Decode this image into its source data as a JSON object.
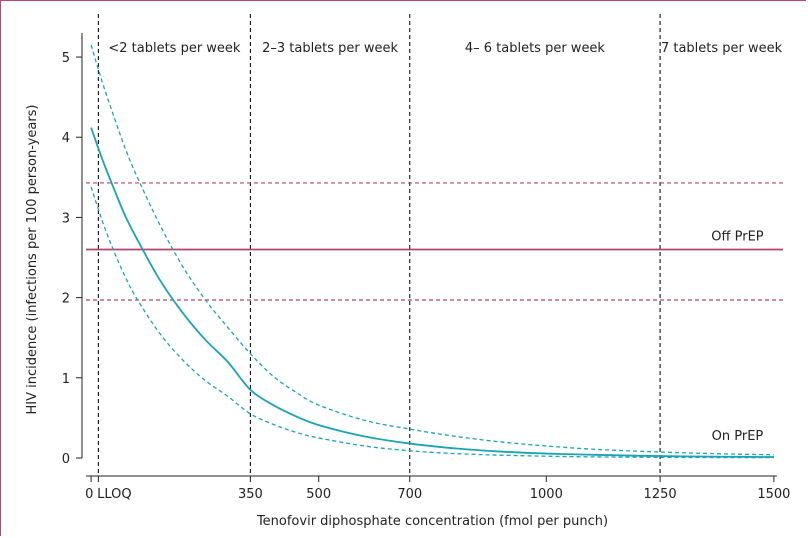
{
  "chart_data": {
    "type": "line",
    "title": "",
    "xlabel": "Tenofovir diphosphate concentration (fmol per punch)",
    "ylabel": "HIV incidence (infections per 100 person-years)",
    "xlim": [
      -20,
      1520
    ],
    "ylim": [
      -0.1,
      5.3
    ],
    "x_ticks": [
      0,
      350,
      500,
      700,
      1000,
      1250,
      1500
    ],
    "y_ticks": [
      0,
      1,
      2,
      3,
      4,
      5
    ],
    "lloq": {
      "x": 16,
      "label": "LLOQ"
    },
    "regions": [
      {
        "boundary_x": 16,
        "label": "<2 tablets per week"
      },
      {
        "boundary_x": 350,
        "label": "2–3 tablets per week"
      },
      {
        "boundary_x": 700,
        "label": "4– 6 tablets per week"
      },
      {
        "boundary_x": 1250,
        "label": "7 tablets per week"
      }
    ],
    "off_prep": {
      "label": "Off PrEP",
      "estimate": 2.6,
      "lower": 1.97,
      "upper": 3.43,
      "color": "#b5426e"
    },
    "on_prep": {
      "label": "On PrEP",
      "color": "#1aa3b5",
      "x": [
        0,
        25,
        50,
        75,
        100,
        150,
        200,
        250,
        300,
        350,
        400,
        450,
        500,
        600,
        700,
        800,
        900,
        1000,
        1100,
        1200,
        1300,
        1400,
        1500
      ],
      "estimate": [
        4.12,
        3.72,
        3.36,
        3.02,
        2.74,
        2.23,
        1.82,
        1.48,
        1.2,
        0.85,
        0.66,
        0.52,
        0.41,
        0.27,
        0.18,
        0.12,
        0.08,
        0.055,
        0.04,
        0.028,
        0.02,
        0.015,
        0.012
      ],
      "lower": [
        3.38,
        2.95,
        2.58,
        2.26,
        1.99,
        1.56,
        1.23,
        0.97,
        0.77,
        0.55,
        0.42,
        0.32,
        0.25,
        0.15,
        0.09,
        0.055,
        0.035,
        0.022,
        0.014,
        0.01,
        0.007,
        0.005,
        0.004
      ],
      "upper": [
        5.15,
        4.68,
        4.26,
        3.86,
        3.52,
        2.92,
        2.4,
        1.98,
        1.63,
        1.3,
        1.02,
        0.82,
        0.66,
        0.47,
        0.36,
        0.27,
        0.2,
        0.15,
        0.11,
        0.085,
        0.065,
        0.05,
        0.04
      ]
    }
  }
}
